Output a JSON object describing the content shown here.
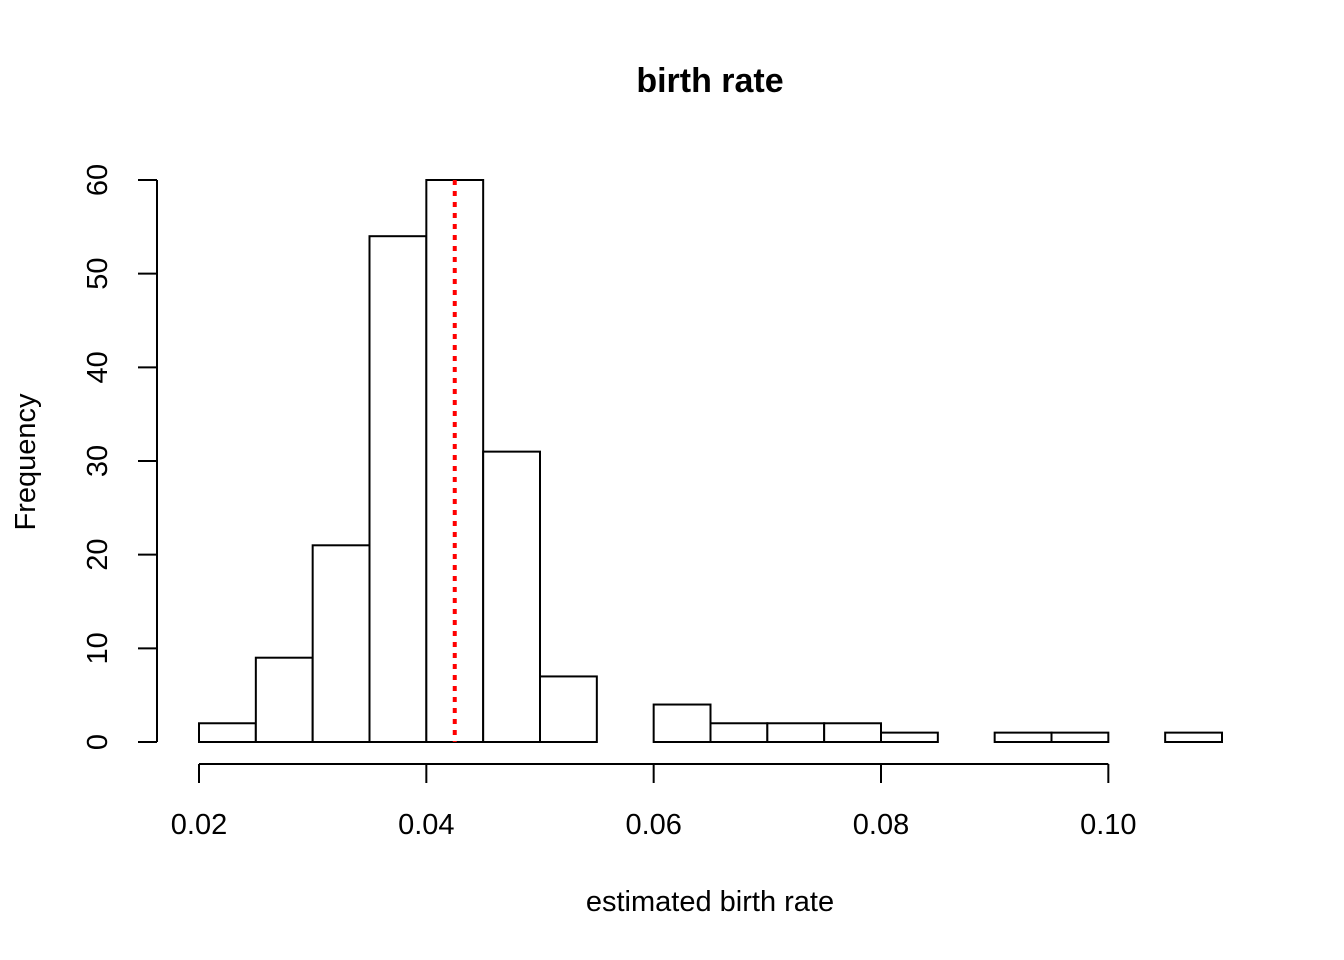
{
  "chart_data": {
    "type": "bar",
    "title": "birth rate",
    "xlabel": "estimated birth rate",
    "ylabel": "Frequency",
    "xlim": [
      0.02,
      0.11
    ],
    "ylim": [
      0,
      60
    ],
    "bin_width": 0.005,
    "bins": [
      {
        "start": 0.02,
        "end": 0.025,
        "count": 2
      },
      {
        "start": 0.025,
        "end": 0.03,
        "count": 9
      },
      {
        "start": 0.03,
        "end": 0.035,
        "count": 21
      },
      {
        "start": 0.035,
        "end": 0.04,
        "count": 54
      },
      {
        "start": 0.04,
        "end": 0.045,
        "count": 60
      },
      {
        "start": 0.045,
        "end": 0.05,
        "count": 31
      },
      {
        "start": 0.05,
        "end": 0.055,
        "count": 7
      },
      {
        "start": 0.055,
        "end": 0.06,
        "count": 0
      },
      {
        "start": 0.06,
        "end": 0.065,
        "count": 4
      },
      {
        "start": 0.065,
        "end": 0.07,
        "count": 2
      },
      {
        "start": 0.07,
        "end": 0.075,
        "count": 2
      },
      {
        "start": 0.075,
        "end": 0.08,
        "count": 2
      },
      {
        "start": 0.08,
        "end": 0.085,
        "count": 1
      },
      {
        "start": 0.085,
        "end": 0.09,
        "count": 0
      },
      {
        "start": 0.09,
        "end": 0.095,
        "count": 1
      },
      {
        "start": 0.095,
        "end": 0.1,
        "count": 1
      },
      {
        "start": 0.1,
        "end": 0.105,
        "count": 0
      },
      {
        "start": 0.105,
        "end": 0.11,
        "count": 1
      }
    ],
    "x_ticks": [
      {
        "value": 0.02,
        "label": "0.02"
      },
      {
        "value": 0.04,
        "label": "0.04"
      },
      {
        "value": 0.06,
        "label": "0.06"
      },
      {
        "value": 0.08,
        "label": "0.08"
      },
      {
        "value": 0.1,
        "label": "0.10"
      }
    ],
    "y_ticks": [
      {
        "value": 0,
        "label": "0"
      },
      {
        "value": 10,
        "label": "10"
      },
      {
        "value": 20,
        "label": "20"
      },
      {
        "value": 30,
        "label": "30"
      },
      {
        "value": 40,
        "label": "40"
      },
      {
        "value": 50,
        "label": "50"
      },
      {
        "value": 60,
        "label": "60"
      }
    ],
    "reference_line": {
      "x": 0.0425,
      "color": "#ff0000",
      "style": "dotted"
    },
    "grid": false,
    "legend": false
  }
}
